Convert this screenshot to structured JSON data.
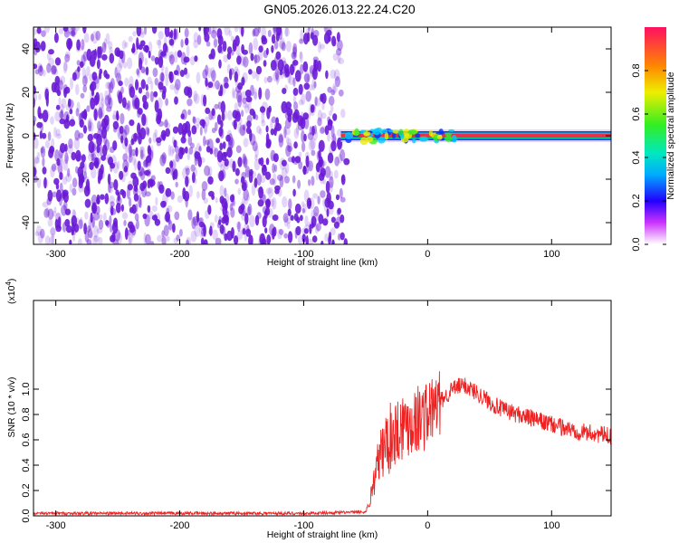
{
  "title": "GN05.2026.013.22.24.C20",
  "colors": {
    "axis": "#000000",
    "snr_line": "#ee2222",
    "noise": "#6a1bd6",
    "ridge": "#e8304a"
  },
  "chart_data": [
    {
      "type": "heatmap",
      "xlabel": "Height of straight line (km)",
      "ylabel": "Frequency (Hz)",
      "xlim": [
        -318,
        148
      ],
      "ylim": [
        -50,
        50
      ],
      "xticks": [
        -300,
        -200,
        -100,
        0,
        100
      ],
      "yticks": [
        -40,
        -20,
        0,
        20,
        40
      ],
      "colorbar": {
        "label": "Normalized spectral amplitude",
        "range": [
          0,
          1
        ],
        "ticks": [
          "0.0",
          "0.2",
          "0.4",
          "0.6",
          "0.8"
        ]
      },
      "noise_region_x": [
        -318,
        -68
      ],
      "ridge": {
        "x_start": -70,
        "x_end": 148,
        "frequency": 0
      }
    },
    {
      "type": "line",
      "xlabel": "Height of straight line (km)",
      "ylabel": "SNR (10 * v/v)",
      "y_multiplier": "(x10",
      "y_multiplier_exp": "4",
      "y_multiplier_close": ")",
      "xlim": [
        -318,
        148
      ],
      "ylim": [
        0,
        1.7
      ],
      "xticks": [
        -300,
        -200,
        -100,
        0,
        100
      ],
      "yticks": [
        "0.0",
        "0.2",
        "0.4",
        "0.6",
        "0.8",
        "1.0"
      ],
      "series": [
        {
          "x": [
            -318,
            -100,
            -50,
            -47,
            -44,
            -40,
            -35,
            -30,
            -25,
            -20,
            -15,
            -10,
            0,
            10,
            20,
            25,
            30,
            35,
            40,
            50,
            60,
            80,
            100,
            120,
            148
          ],
          "y": [
            0.02,
            0.02,
            0.03,
            0.1,
            0.25,
            0.42,
            0.55,
            0.62,
            0.68,
            0.72,
            0.74,
            0.76,
            0.8,
            0.9,
            1.0,
            1.02,
            1.03,
            1.0,
            0.97,
            0.9,
            0.84,
            0.78,
            0.72,
            0.67,
            0.63
          ]
        }
      ]
    }
  ]
}
